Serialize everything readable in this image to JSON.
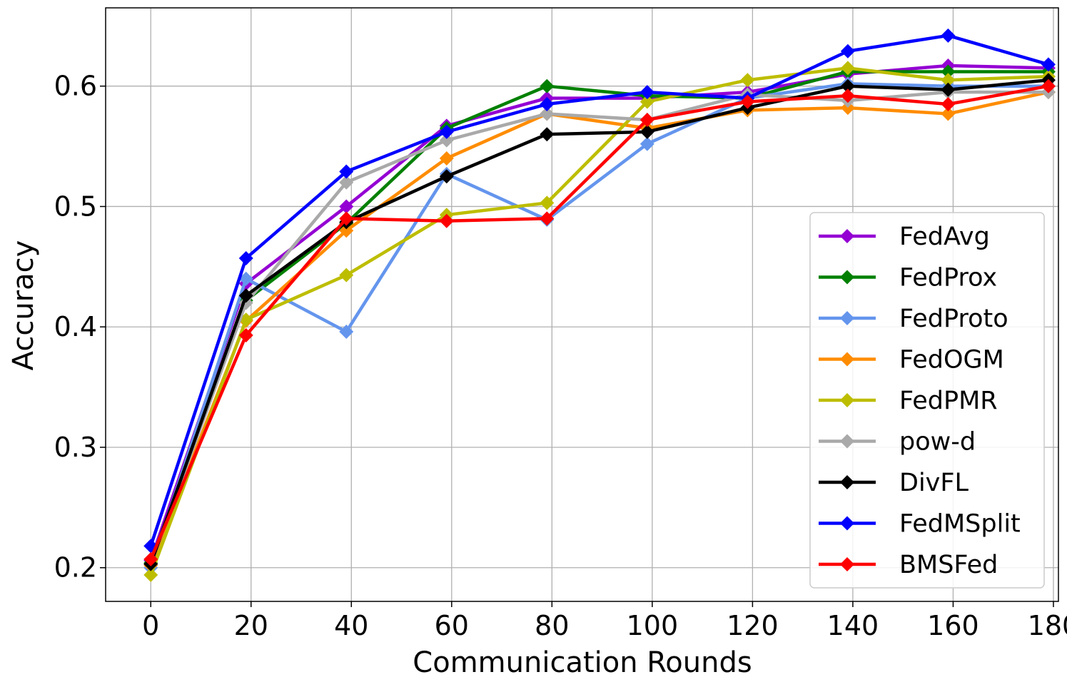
{
  "chart_data": {
    "type": "line",
    "title": "",
    "xlabel": "Communication Rounds",
    "ylabel": "Accuracy",
    "xlim": [
      -9,
      181
    ],
    "ylim": [
      0.172,
      0.665
    ],
    "xticks": [
      0,
      20,
      40,
      60,
      80,
      100,
      120,
      140,
      160,
      180
    ],
    "yticks": [
      0.2,
      0.3,
      0.4,
      0.5,
      0.6
    ],
    "ytick_labels": [
      "0.2",
      "0.3",
      "0.4",
      "0.5",
      "0.6"
    ],
    "xtick_labels": [
      "0",
      "20",
      "40",
      "60",
      "80",
      "100",
      "120",
      "140",
      "160",
      "180"
    ],
    "grid": true,
    "legend_position": "lower-right",
    "x": [
      0,
      19,
      39,
      59,
      79,
      99,
      119,
      139,
      159,
      179
    ],
    "series": [
      {
        "name": "FedAvg",
        "color": "#9400d3",
        "values": [
          0.206,
          0.436,
          0.5,
          0.567,
          0.59,
          0.59,
          0.595,
          0.61,
          0.617,
          0.615
        ]
      },
      {
        "name": "FedProx",
        "color": "#008000",
        "values": [
          0.204,
          0.422,
          0.486,
          0.565,
          0.6,
          0.592,
          0.59,
          0.612,
          0.612,
          0.612
        ]
      },
      {
        "name": "FedProto",
        "color": "#6495ed",
        "values": [
          0.2,
          0.44,
          0.396,
          0.527,
          0.489,
          0.552,
          0.59,
          0.602,
          0.6,
          0.6
        ]
      },
      {
        "name": "FedOGM",
        "color": "#ff8c00",
        "values": [
          0.202,
          0.405,
          0.48,
          0.54,
          0.577,
          0.565,
          0.58,
          0.582,
          0.577,
          0.595
        ]
      },
      {
        "name": "FedPMR",
        "color": "#bdbd00",
        "values": [
          0.194,
          0.406,
          0.443,
          0.493,
          0.503,
          0.587,
          0.605,
          0.615,
          0.605,
          0.608
        ]
      },
      {
        "name": "pow-d",
        "color": "#a9a9a9",
        "values": [
          0.203,
          0.42,
          0.52,
          0.555,
          0.577,
          0.572,
          0.593,
          0.588,
          0.595,
          0.595
        ]
      },
      {
        "name": "DivFL",
        "color": "#000000",
        "values": [
          0.203,
          0.426,
          0.487,
          0.525,
          0.56,
          0.562,
          0.582,
          0.6,
          0.597,
          0.605
        ]
      },
      {
        "name": "FedMSplit",
        "color": "#0000ff",
        "values": [
          0.218,
          0.457,
          0.529,
          0.562,
          0.585,
          0.595,
          0.59,
          0.629,
          0.642,
          0.618
        ]
      },
      {
        "name": "BMSFed",
        "color": "#ff0000",
        "values": [
          0.207,
          0.393,
          0.49,
          0.488,
          0.49,
          0.572,
          0.587,
          0.592,
          0.585,
          0.6
        ]
      }
    ]
  }
}
